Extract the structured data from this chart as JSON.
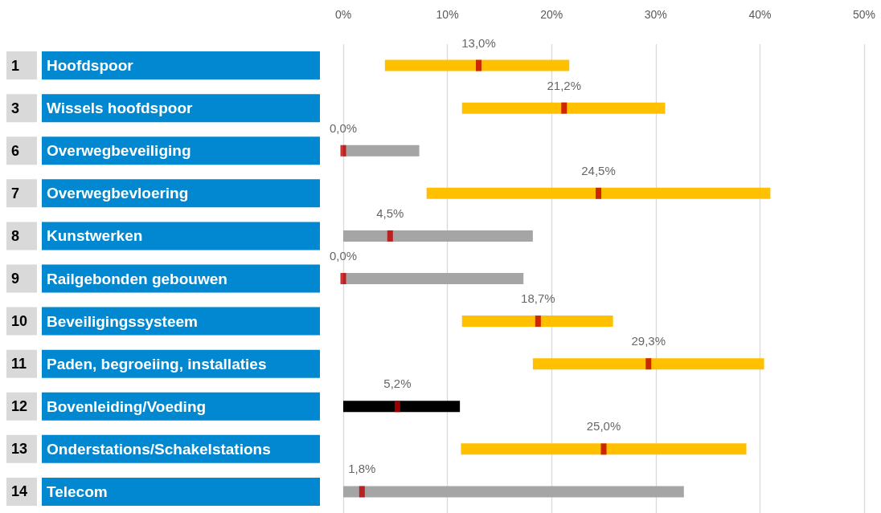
{
  "chart_data": {
    "type": "bar",
    "orientation": "horizontal",
    "categories": [
      "1 Hoofdspoor",
      "3 Wissels hoofdspoor",
      "6 Overwegbeveiliging",
      "7 Overwegbevloering",
      "8 Kunstwerken",
      "9 Railgebonden gebouwen",
      "10 Beveiligingssysteem",
      "11 Paden, begroeiing, installaties",
      "12 Bovenleiding/Voeding",
      "13 Onderstations/Schakelstations",
      "14 Telecom"
    ],
    "series": [
      {
        "base": [
          4.0,
          11.4,
          0,
          8.0,
          0,
          0,
          11.4,
          18.2,
          0,
          11.3,
          0
        ],
        "values": [
          17.7,
          19.5,
          7.3,
          33.0,
          18.2,
          17.3,
          14.5,
          22.2,
          11.2,
          27.4,
          32.7
        ],
        "colors": [
          "#ffc000",
          "#ffc000",
          "#a5a5a5",
          "#ffc000",
          "#a5a5a5",
          "#a5a5a5",
          "#ffc000",
          "#ffc000",
          "#000000",
          "#ffc000",
          "#a5a5a5"
        ]
      },
      {
        "type": "scatter",
        "marker": "square",
        "color": "#c00000",
        "x": [
          "1 Hoofdspoor",
          "3 Wissels hoofdspoor",
          "6 Overwegbeveiliging",
          "7 Overwegbevloering",
          "8 Kunstwerken",
          "9 Railgebonden gebouwen",
          "10 Beveiligingssysteem",
          "11 Paden, begroeiing, installaties",
          "12 Bovenleiding/Voeding",
          "13 Onderstations/Schakelstations",
          "14 Telecom"
        ],
        "values": [
          13.0,
          21.2,
          0.0,
          24.5,
          4.5,
          0.0,
          18.7,
          29.3,
          5.2,
          25.0,
          1.8
        ],
        "value_labels": [
          "13,0%",
          "21,2%",
          "0,0%",
          "24,5%",
          "4,5%",
          "0,0%",
          "18,7%",
          "29,3%",
          "5,2%",
          "25,0%",
          "1,8%"
        ]
      }
    ],
    "xlim": [
      0,
      50
    ],
    "xticks": [
      {
        "value": 0,
        "label": "0%"
      },
      {
        "value": 10,
        "label": "10%"
      },
      {
        "value": 20,
        "label": "20%"
      },
      {
        "value": 30,
        "label": "30%"
      },
      {
        "value": 40,
        "label": "40%"
      },
      {
        "value": 50,
        "label": "50%"
      }
    ],
    "grid": "x"
  }
}
